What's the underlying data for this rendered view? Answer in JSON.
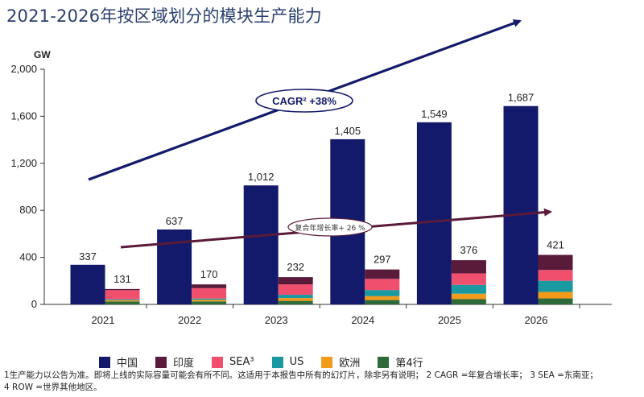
{
  "chart_data": {
    "type": "bar",
    "title": "2021-2026年按区域划分的模块生产能力",
    "ylabel": "GW",
    "xlabel": "",
    "ylim": [
      0,
      2000
    ],
    "yticks": [
      "0",
      "400",
      "800",
      "1,200",
      "1,600",
      "2,000"
    ],
    "ytick_values": [
      0,
      400,
      800,
      1200,
      1600,
      2000
    ],
    "grid": false,
    "legend_position": "bottom",
    "categories": [
      "2021",
      "2022",
      "2023",
      "2024",
      "2025",
      "2026"
    ],
    "series": [
      {
        "name": "中国",
        "stack": "china",
        "color": "#141a6b",
        "values": [
          337,
          637,
          1012,
          1405,
          1549,
          1687
        ],
        "value_labels": [
          "337",
          "637",
          "1,012",
          "1,405",
          "1,549",
          "1,687"
        ]
      },
      {
        "name": "印度",
        "stack": "row",
        "color": "#5a1a3a",
        "values": [
          10,
          32,
          62,
          80,
          112,
          128
        ]
      },
      {
        "name": "SEA³",
        "stack": "row",
        "color": "#f0506e",
        "values": [
          78,
          88,
          88,
          95,
          98,
          92
        ]
      },
      {
        "name": "US",
        "stack": "row",
        "color": "#1a9aa0",
        "values": [
          8,
          11,
          28,
          52,
          75,
          95
        ]
      },
      {
        "name": "欧洲",
        "stack": "row",
        "color": "#f29a1a",
        "values": [
          10,
          14,
          24,
          33,
          46,
          55
        ]
      },
      {
        "name": "第4行",
        "stack": "row",
        "color": "#2f6b3a",
        "values": [
          25,
          25,
          30,
          37,
          45,
          51
        ]
      }
    ],
    "stack_totals": {
      "row": [
        "131",
        "170",
        "232",
        "297",
        "376",
        "421"
      ]
    },
    "annotations": [
      {
        "text": "CAGR² +38%",
        "type": "trend-arrow",
        "from": [
          "2021",
          1050
        ],
        "to": [
          "2026",
          2390
        ]
      },
      {
        "text": "复合年增长率+ 26 %",
        "type": "trend-arrow",
        "from": [
          "2021",
          480
        ],
        "to": [
          "2026",
          790
        ]
      }
    ]
  },
  "footnote": {
    "line1": "1生产能力以公告为准。即将上线的实际容量可能会有所不同。这适用于本报告中所有的幻灯片，除非另有说明； 2 CAGR =年复合增长率； 3 SEA =东南亚；",
    "line2": "4 ROW =世界其他地区。"
  }
}
